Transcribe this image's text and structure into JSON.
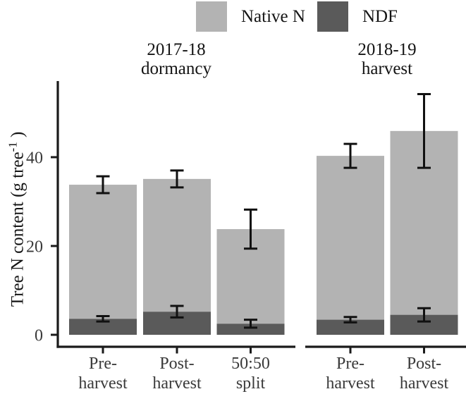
{
  "chart_data": {
    "type": "bar",
    "stacked": true,
    "grid": false,
    "legend": {
      "position": "top",
      "entries": [
        {
          "label": "Native N",
          "color": "#b3b3b3"
        },
        {
          "label": "NDF",
          "color": "#5a5a5a"
        }
      ]
    },
    "ylabel": {
      "prefix": "Tree N content (g  tree",
      "superscript": "-1",
      "suffix": " )"
    },
    "yticks": [
      0,
      20,
      40
    ],
    "ylim": [
      0,
      57
    ],
    "facets": [
      {
        "title": "2017-18\ndormancy",
        "categories": [
          "Pre-\nharvest",
          "Post-\nharvest",
          "50:50\nsplit"
        ],
        "series": {
          "ndf": {
            "name": "NDF",
            "values": [
              3.6,
              5.2,
              2.5
            ],
            "errors": [
              0.6,
              1.3,
              0.9
            ]
          },
          "native": {
            "name": "Native N",
            "values": [
              30.2,
              29.9,
              21.3
            ]
          }
        },
        "stack_totals": {
          "values": [
            33.8,
            35.1,
            23.8
          ],
          "errors": [
            1.9,
            1.9,
            4.4
          ]
        }
      },
      {
        "title": "2018-19\nharvest",
        "categories": [
          "Pre-\nharvest",
          "Post-\nharvest"
        ],
        "series": {
          "ndf": {
            "name": "NDF",
            "values": [
              3.4,
              4.5
            ],
            "errors": [
              0.6,
              1.5
            ]
          },
          "native": {
            "name": "Native N",
            "values": [
              36.9,
              41.4
            ]
          }
        },
        "stack_totals": {
          "values": [
            40.3,
            45.9
          ],
          "errors": [
            2.7,
            8.3
          ]
        }
      }
    ]
  },
  "colors": {
    "background": "#ffffff",
    "axis": "#1a1a1a",
    "error_bar": "#111111",
    "tick_label": "#3a3a3a",
    "text": "#141414"
  }
}
